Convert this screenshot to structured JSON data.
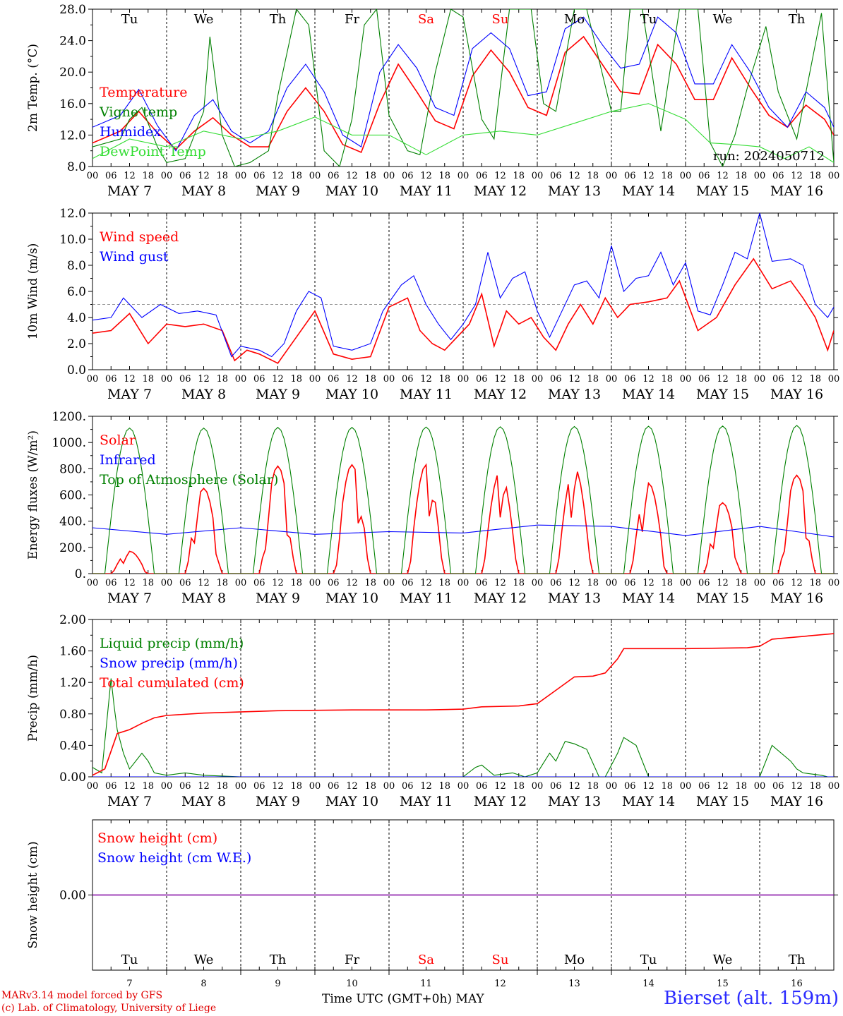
{
  "days": [
    "7",
    "8",
    "9",
    "10",
    "11",
    "12",
    "13",
    "14",
    "15",
    "16"
  ],
  "day_names": [
    "Tu",
    "We",
    "Th",
    "Fr",
    "Sa",
    "Su",
    "Mo",
    "Tu",
    "We",
    "Th"
  ],
  "weekend_flags": [
    false,
    false,
    false,
    false,
    true,
    true,
    false,
    false,
    false,
    false
  ],
  "hour_ticks": [
    "00",
    "06",
    "12",
    "18"
  ],
  "end_tick": "00",
  "month": "MAY",
  "colors": {
    "red": "#ff0000",
    "darkgreen": "#008000",
    "blue": "#0000ff",
    "lightgreen": "#33dd33",
    "purple": "#7f00a0",
    "weekend": "#ff0000",
    "grey": "#999999"
  },
  "run_label": "run: 2024050712",
  "footer": {
    "model": "MARv3.14 model forced by GFS",
    "lab": "(c) Lab. of Climatology, University of Liege",
    "time_label": "Time UTC (GMT+0h) MAY",
    "station": "Bierset (alt. 159m)"
  },
  "chart_data": [
    {
      "type": "line",
      "ylabel": "2m Temp. (°C)",
      "ylim": [
        8,
        28
      ],
      "yticks": [
        "8.0",
        "12.0",
        "16.0",
        "20.0",
        "24.0",
        "28.0"
      ],
      "x_unit": "hours since MAY 7 00 UTC",
      "series": [
        {
          "name": "Temperature",
          "color": "red",
          "x": [
            0,
            9,
            15,
            21,
            27,
            33,
            39,
            45,
            51,
            57,
            63,
            69,
            75,
            81,
            87,
            93,
            99,
            105,
            111,
            117,
            123,
            129,
            135,
            141,
            147,
            153,
            159,
            165,
            171,
            177,
            183,
            189,
            195,
            201,
            207,
            213,
            219,
            225,
            231,
            237,
            240
          ],
          "values": [
            11.0,
            12.5,
            15.0,
            12.3,
            10.2,
            12.5,
            14.2,
            12.0,
            10.5,
            10.5,
            15.0,
            18.0,
            15.0,
            10.8,
            9.8,
            16.0,
            21.0,
            17.5,
            13.8,
            12.8,
            19.5,
            22.8,
            20.0,
            15.5,
            14.5,
            22.5,
            24.5,
            21.0,
            17.5,
            17.2,
            23.5,
            21.0,
            16.5,
            16.5,
            21.8,
            18.0,
            14.5,
            13.0,
            15.8,
            14.0,
            12.0
          ]
        },
        {
          "name": "Vigne temp",
          "color": "darkgreen",
          "x": [
            0,
            9,
            12,
            16,
            21,
            24,
            30,
            36,
            38,
            42,
            46,
            51,
            57,
            60,
            66,
            70,
            75,
            80,
            84,
            88,
            92,
            96,
            102,
            106,
            111,
            116,
            120,
            126,
            130,
            135,
            142,
            146,
            150,
            156,
            160,
            168,
            171,
            174,
            178,
            184,
            190,
            196,
            200,
            204,
            208,
            212,
            218,
            222,
            228,
            236,
            240
          ],
          "values": [
            10.5,
            11.5,
            14.0,
            15.5,
            10.5,
            8.5,
            9.0,
            15.0,
            24.5,
            12.0,
            8.0,
            8.5,
            10.0,
            17.0,
            28.0,
            26.0,
            10.0,
            8.0,
            14.0,
            26.0,
            28.0,
            14.5,
            10.0,
            9.5,
            20.0,
            28.0,
            27.0,
            14.0,
            11.5,
            28.0,
            28.0,
            16.0,
            15.0,
            28.0,
            28.0,
            15.0,
            15.0,
            28.0,
            28.0,
            12.5,
            28.0,
            28.0,
            11.0,
            8.0,
            12.0,
            18.0,
            25.8,
            17.5,
            11.5,
            27.5,
            8.5
          ]
        },
        {
          "name": "Humidex",
          "color": "blue",
          "x": [
            0,
            9,
            15,
            21,
            27,
            33,
            39,
            45,
            51,
            57,
            63,
            69,
            75,
            81,
            87,
            93,
            99,
            105,
            111,
            117,
            123,
            129,
            135,
            141,
            147,
            153,
            159,
            165,
            171,
            177,
            183,
            189,
            195,
            201,
            207,
            213,
            219,
            225,
            231,
            237,
            240
          ],
          "values": [
            13.0,
            14.5,
            17.8,
            13.2,
            10.0,
            14.5,
            16.5,
            12.5,
            11.0,
            12.5,
            18.0,
            21.0,
            17.5,
            12.0,
            10.5,
            20.0,
            23.5,
            20.5,
            15.5,
            14.5,
            23.0,
            25.0,
            23.0,
            17.0,
            17.5,
            25.5,
            27.0,
            23.5,
            20.5,
            21.0,
            27.0,
            25.0,
            18.5,
            18.5,
            23.5,
            20.0,
            15.5,
            13.0,
            17.5,
            15.5,
            13.0
          ]
        },
        {
          "name": "DewPoint Temp",
          "color": "lightgreen",
          "x": [
            0,
            12,
            24,
            36,
            48,
            60,
            72,
            84,
            96,
            108,
            120,
            132,
            144,
            156,
            168,
            180,
            192,
            200,
            208,
            216,
            224,
            232,
            240
          ],
          "values": [
            9.0,
            11.5,
            10.5,
            12.5,
            11.5,
            12.5,
            14.3,
            12.0,
            12.0,
            9.5,
            12.0,
            12.5,
            12.0,
            13.5,
            15.0,
            16.0,
            14.0,
            11.0,
            10.8,
            10.5,
            9.0,
            10.5,
            8.5
          ]
        }
      ]
    },
    {
      "type": "line",
      "ylabel": "10m Wind (m/s)",
      "ylim": [
        0,
        12
      ],
      "yticks": [
        "0.0",
        "2.0",
        "4.0",
        "6.0",
        "8.0",
        "10.0",
        "12.0"
      ],
      "reference_line": 5,
      "series": [
        {
          "name": "Wind speed",
          "color": "red",
          "x": [
            0,
            6,
            12,
            18,
            24,
            30,
            36,
            42,
            46,
            50,
            54,
            60,
            66,
            72,
            78,
            84,
            90,
            96,
            102,
            106,
            110,
            114,
            118,
            122,
            126,
            130,
            134,
            138,
            142,
            146,
            150,
            154,
            158,
            162,
            166,
            170,
            174,
            180,
            186,
            190,
            196,
            202,
            208,
            214,
            220,
            226,
            230,
            234,
            238,
            240
          ],
          "values": [
            2.8,
            3.0,
            4.3,
            2.0,
            3.5,
            3.3,
            3.5,
            3.0,
            0.7,
            1.5,
            1.2,
            0.5,
            2.5,
            4.5,
            1.2,
            0.8,
            1.0,
            4.8,
            5.5,
            3.0,
            2.0,
            1.5,
            2.5,
            3.5,
            5.8,
            1.8,
            4.5,
            3.5,
            4.0,
            2.5,
            1.5,
            3.5,
            5.0,
            3.5,
            5.5,
            4.0,
            5.0,
            5.2,
            5.5,
            6.8,
            3.0,
            4.0,
            6.5,
            8.5,
            6.2,
            6.8,
            5.5,
            4.0,
            1.5,
            3.0
          ]
        },
        {
          "name": "Wind gust",
          "color": "blue",
          "x": [
            0,
            6,
            10,
            16,
            22,
            28,
            34,
            40,
            45,
            48,
            54,
            58,
            62,
            66,
            70,
            74,
            78,
            84,
            90,
            94,
            100,
            104,
            108,
            112,
            116,
            120,
            124,
            128,
            132,
            136,
            140,
            144,
            148,
            152,
            156,
            160,
            164,
            168,
            172,
            176,
            180,
            184,
            188,
            192,
            196,
            200,
            204,
            208,
            212,
            216,
            220,
            226,
            230,
            234,
            238,
            240
          ],
          "values": [
            3.8,
            4.0,
            5.5,
            4.0,
            5.0,
            4.3,
            4.5,
            4.2,
            1.0,
            1.8,
            1.5,
            1.0,
            2.0,
            4.5,
            6.0,
            5.5,
            1.8,
            1.5,
            2.0,
            4.5,
            6.5,
            7.2,
            5.0,
            3.5,
            2.3,
            3.5,
            5.0,
            9.0,
            5.5,
            7.0,
            7.5,
            4.5,
            2.5,
            4.5,
            6.5,
            6.8,
            5.5,
            9.5,
            6.0,
            7.0,
            7.2,
            9.0,
            6.5,
            8.2,
            4.5,
            4.2,
            6.5,
            9.0,
            8.5,
            12.0,
            8.3,
            8.5,
            8.0,
            5.0,
            4.0,
            4.8
          ]
        }
      ]
    },
    {
      "type": "line",
      "ylabel": "Energy fluxes (W/m²)",
      "ylim": [
        0,
        1200
      ],
      "yticks": [
        "0.",
        "200.",
        "400.",
        "600.",
        "800.",
        "1000.",
        "1200."
      ],
      "series": [
        {
          "name": "Solar",
          "color": "red",
          "peaks": [
            170,
            650,
            820,
            830,
            830,
            780,
            810,
            690,
            540,
            750
          ]
        },
        {
          "name": "Infrared",
          "color": "blue",
          "x": [
            0,
            24,
            48,
            72,
            96,
            120,
            144,
            168,
            192,
            216,
            240
          ],
          "values": [
            350,
            300,
            350,
            300,
            320,
            310,
            370,
            360,
            290,
            360,
            280
          ]
        },
        {
          "name": "Top of Atmosphere (Solar)",
          "color": "darkgreen",
          "peaks": [
            1110,
            1110,
            1115,
            1115,
            1118,
            1120,
            1122,
            1124,
            1126,
            1130
          ]
        }
      ]
    },
    {
      "type": "line",
      "ylabel": "Precip (mm/h)",
      "ylim": [
        0,
        2
      ],
      "yticks": [
        "0.00",
        "0.40",
        "0.80",
        "1.20",
        "1.60",
        "2.00"
      ],
      "series": [
        {
          "name": "Liquid precip (mm/h)",
          "color": "darkgreen",
          "x": [
            0,
            3,
            6,
            7,
            8,
            10,
            12,
            16,
            18,
            20,
            24,
            30,
            36,
            48,
            120,
            124,
            126,
            130,
            136,
            140,
            144,
            148,
            150,
            153,
            156,
            160,
            164,
            166,
            170,
            172,
            176,
            180,
            188,
            192,
            200,
            216,
            220,
            226,
            228,
            230,
            236,
            238,
            240
          ],
          "values": [
            0.12,
            0.05,
            1.25,
            0.9,
            0.6,
            0.3,
            0.1,
            0.3,
            0.2,
            0.05,
            0.02,
            0.05,
            0.02,
            0.0,
            0.0,
            0.12,
            0.15,
            0.02,
            0.05,
            0.0,
            0.05,
            0.3,
            0.2,
            0.45,
            0.42,
            0.35,
            0.0,
            0.0,
            0.3,
            0.5,
            0.4,
            0.0,
            0.0,
            0.0,
            0.0,
            0.0,
            0.4,
            0.2,
            0.1,
            0.05,
            0.02,
            0.0,
            0.0
          ]
        },
        {
          "name": "Snow precip (mm/h)",
          "color": "blue",
          "x": [
            0,
            240
          ],
          "values": [
            0.0,
            0.0
          ]
        },
        {
          "name": "Total cumulated (cm)",
          "color": "red",
          "x": [
            0,
            4,
            8,
            12,
            16,
            20,
            24,
            36,
            60,
            84,
            108,
            120,
            126,
            138,
            144,
            150,
            156,
            162,
            166,
            170,
            172,
            192,
            212,
            216,
            220,
            240
          ],
          "values": [
            0.02,
            0.1,
            0.55,
            0.6,
            0.68,
            0.75,
            0.78,
            0.81,
            0.84,
            0.85,
            0.85,
            0.86,
            0.89,
            0.9,
            0.93,
            1.1,
            1.27,
            1.28,
            1.32,
            1.5,
            1.63,
            1.63,
            1.64,
            1.66,
            1.75,
            1.82
          ]
        }
      ]
    },
    {
      "type": "line",
      "ylabel": "Snow height (cm)",
      "ylim": [
        -1,
        1
      ],
      "yticks": [
        "0.00"
      ],
      "series": [
        {
          "name": "Snow height (cm)",
          "color": "red",
          "x": [
            0,
            240
          ],
          "values": [
            0,
            0
          ]
        },
        {
          "name": "Snow height (cm W.E.)",
          "color": "blue",
          "x": [
            0,
            240
          ],
          "values": [
            0,
            0
          ]
        }
      ]
    }
  ]
}
